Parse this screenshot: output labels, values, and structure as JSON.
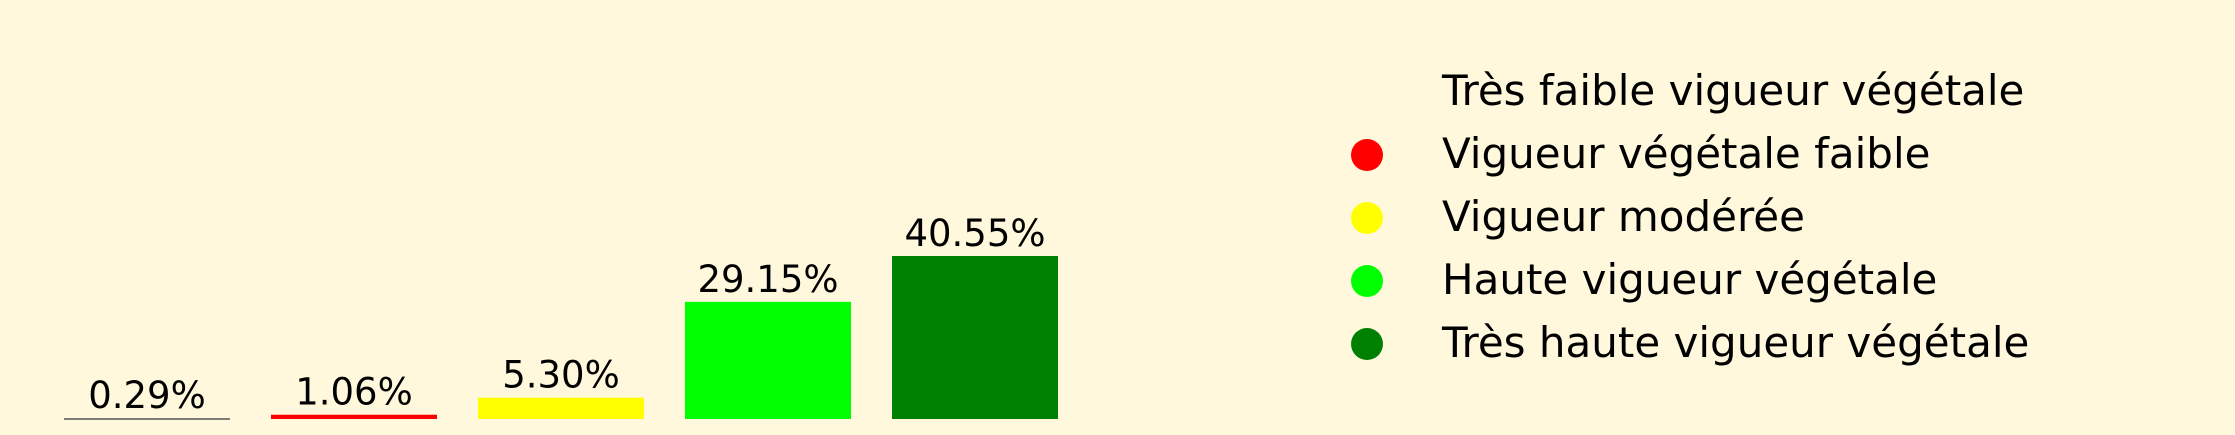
{
  "chart_data": {
    "type": "bar",
    "categories": [
      "Très faible vigueur végétale",
      "Vigueur végétale faible",
      "Vigueur modérée",
      "Haute vigueur végétale",
      "Très haute vigueur végétale"
    ],
    "values": [
      0.29,
      1.06,
      5.3,
      29.15,
      40.55
    ],
    "value_labels": [
      "0.29%",
      "1.06%",
      "5.30%",
      "29.15%",
      "40.55%"
    ],
    "colors": [
      "#fff8dc",
      "#ff0000",
      "#ffff00",
      "#00ff00",
      "#008000"
    ],
    "ylim": [
      0,
      40.55
    ],
    "grid": false,
    "legend_position": "right",
    "background": "#fff8dc"
  }
}
